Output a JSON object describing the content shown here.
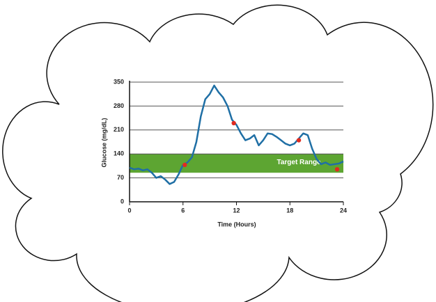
{
  "chart_data": {
    "type": "line",
    "xlabel": "Time (Hours)",
    "ylabel": "Glucose (mg/dL)",
    "x": [
      0,
      0.5,
      1,
      1.5,
      2,
      2.5,
      3,
      3.5,
      4,
      4.5,
      5,
      5.5,
      6,
      6.5,
      7,
      7.5,
      8,
      8.5,
      9,
      9.5,
      10,
      10.5,
      11,
      11.5,
      12,
      12.5,
      13,
      13.5,
      14,
      14.5,
      15,
      15.5,
      16,
      16.5,
      17,
      17.5,
      18,
      18.5,
      19,
      19.5,
      20,
      20.5,
      21,
      21.5,
      22,
      22.5,
      23,
      23.5,
      24
    ],
    "series": [
      {
        "color": "#1f6fa5",
        "values": [
          100,
          95,
          97,
          92,
          95,
          85,
          70,
          75,
          65,
          52,
          58,
          80,
          108,
          115,
          130,
          175,
          250,
          300,
          315,
          340,
          320,
          305,
          280,
          240,
          225,
          200,
          180,
          185,
          195,
          165,
          180,
          200,
          198,
          190,
          180,
          170,
          165,
          170,
          185,
          200,
          195,
          155,
          125,
          110,
          115,
          108,
          110,
          112,
          118
        ]
      }
    ],
    "highlights": {
      "color": "#e02b20",
      "x": [
        6.2,
        11.7,
        19,
        23.3
      ],
      "values": [
        108,
        230,
        180,
        95
      ]
    },
    "target_range": {
      "label": "Target Range",
      "low": 85,
      "high": 140,
      "color": "#5da532"
    },
    "xlim": [
      0,
      24
    ],
    "xticks": [
      0,
      6,
      12,
      18,
      24
    ],
    "ylim": [
      0,
      350
    ],
    "yticks": [
      0,
      70,
      140,
      210,
      280,
      350
    ],
    "grid": true
  }
}
